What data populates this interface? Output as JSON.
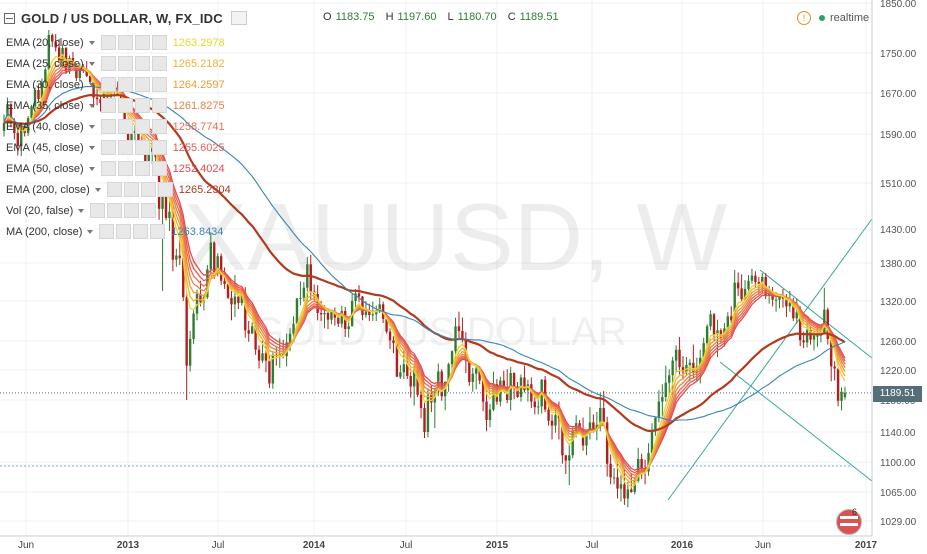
{
  "header": {
    "title": "GOLD / US DOLLAR, W, FX_IDC",
    "ohlc": {
      "o_label": "O",
      "o": "1183.75",
      "h_label": "H",
      "h": "1197.60",
      "l_label": "L",
      "l": "1180.70",
      "c_label": "C",
      "c": "1189.51"
    },
    "realtime_label": "realtime"
  },
  "watermark": {
    "symbol": "XAUUSD, W",
    "name": "GOLD / US DOLLAR"
  },
  "indicators": [
    {
      "name": "EMA (20, close)",
      "value": "1263.2978",
      "color": "#e6d632"
    },
    {
      "name": "EMA (25, close)",
      "value": "1265.2182",
      "color": "#f2b233"
    },
    {
      "name": "EMA (30, close)",
      "value": "1264.2597",
      "color": "#ef9c39"
    },
    {
      "name": "EMA (35, close)",
      "value": "1261.8275",
      "color": "#ec7f45"
    },
    {
      "name": "EMA (40, close)",
      "value": "1258.7741",
      "color": "#ea6c50"
    },
    {
      "name": "EMA (45, close)",
      "value": "1255.6025",
      "color": "#e75b55"
    },
    {
      "name": "EMA (50, close)",
      "value": "1252.4024",
      "color": "#e54c50"
    },
    {
      "name": "EMA (200, close)",
      "value": "1265.2304",
      "color": "#b23a1d"
    },
    {
      "name": "Vol (20, false)",
      "value": "",
      "color": "#888888"
    },
    {
      "name": "MA (200, close)",
      "value": "1263.8434",
      "color": "#3b84b4"
    }
  ],
  "last_price_tag": "1189.51",
  "event_badge_count": "6",
  "chart_data": {
    "type": "candlestick",
    "interval": "W",
    "y_ticks": [
      "1029.00",
      "1065.00",
      "1100.00",
      "1140.00",
      "1180.00",
      "1220.00",
      "1260.00",
      "1320.00",
      "1380.00",
      "1430.00",
      "1510.00",
      "1590.00",
      "1670.00",
      "1750.00",
      "1850.00"
    ],
    "x_ticks": [
      "Jun",
      "2013",
      "Jul",
      "2014",
      "Jul",
      "2015",
      "Jul",
      "2016",
      "Jun",
      "2017"
    ],
    "candles": [
      [
        1596,
        1628,
        1586,
        1612
      ],
      [
        1612,
        1661,
        1598,
        1648
      ],
      [
        1648,
        1650,
        1603,
        1615
      ],
      [
        1615,
        1621,
        1581,
        1592
      ],
      [
        1592,
        1604,
        1555,
        1570
      ],
      [
        1570,
        1610,
        1554,
        1600
      ],
      [
        1600,
        1607,
        1586,
        1592
      ],
      [
        1592,
        1625,
        1587,
        1621
      ],
      [
        1621,
        1647,
        1617,
        1644
      ],
      [
        1644,
        1681,
        1630,
        1676
      ],
      [
        1676,
        1687,
        1651,
        1658
      ],
      [
        1658,
        1699,
        1658,
        1691
      ],
      [
        1691,
        1721,
        1677,
        1717
      ],
      [
        1717,
        1796,
        1716,
        1786
      ],
      [
        1786,
        1789,
        1762,
        1773
      ],
      [
        1773,
        1788,
        1753,
        1761
      ],
      [
        1761,
        1778,
        1730,
        1735
      ],
      [
        1735,
        1767,
        1721,
        1760
      ],
      [
        1760,
        1762,
        1708,
        1713
      ],
      [
        1713,
        1745,
        1708,
        1740
      ],
      [
        1740,
        1752,
        1723,
        1726
      ],
      [
        1726,
        1729,
        1694,
        1700
      ],
      [
        1700,
        1729,
        1693,
        1723
      ],
      [
        1723,
        1728,
        1710,
        1715
      ],
      [
        1715,
        1734,
        1702,
        1704
      ],
      [
        1704,
        1710,
        1689,
        1692
      ],
      [
        1692,
        1696,
        1642,
        1661
      ],
      [
        1661,
        1681,
        1646,
        1658
      ],
      [
        1658,
        1667,
        1634,
        1650
      ],
      [
        1650,
        1676,
        1638,
        1669
      ],
      [
        1669,
        1671,
        1648,
        1662
      ],
      [
        1662,
        1676,
        1653,
        1672
      ],
      [
        1672,
        1688,
        1662,
        1680
      ],
      [
        1680,
        1693,
        1666,
        1667
      ],
      [
        1667,
        1673,
        1641,
        1655
      ],
      [
        1655,
        1663,
        1610,
        1614
      ],
      [
        1614,
        1620,
        1556,
        1575
      ],
      [
        1575,
        1611,
        1557,
        1592
      ],
      [
        1592,
        1608,
        1580,
        1596
      ],
      [
        1596,
        1605,
        1567,
        1578
      ],
      [
        1578,
        1589,
        1562,
        1570
      ],
      [
        1570,
        1578,
        1543,
        1546
      ],
      [
        1546,
        1571,
        1526,
        1561
      ],
      [
        1561,
        1578,
        1541,
        1567
      ],
      [
        1567,
        1575,
        1545,
        1552
      ],
      [
        1552,
        1559,
        1446,
        1465
      ],
      [
        1465,
        1504,
        1336,
        1492
      ],
      [
        1492,
        1501,
        1445,
        1449
      ],
      [
        1449,
        1478,
        1427,
        1460
      ],
      [
        1460,
        1468,
        1367,
        1385
      ],
      [
        1385,
        1401,
        1374,
        1391
      ],
      [
        1391,
        1420,
        1377,
        1387
      ],
      [
        1387,
        1403,
        1320,
        1326
      ],
      [
        1326,
        1333,
        1180,
        1226
      ],
      [
        1226,
        1275,
        1218,
        1263
      ],
      [
        1263,
        1306,
        1256,
        1301
      ],
      [
        1301,
        1338,
        1291,
        1331
      ],
      [
        1331,
        1352,
        1312,
        1318
      ],
      [
        1318,
        1330,
        1306,
        1326
      ],
      [
        1326,
        1377,
        1323,
        1370
      ],
      [
        1370,
        1425,
        1353,
        1410
      ],
      [
        1410,
        1412,
        1355,
        1366
      ],
      [
        1366,
        1394,
        1359,
        1390
      ],
      [
        1390,
        1394,
        1345,
        1352
      ],
      [
        1352,
        1373,
        1339,
        1347
      ],
      [
        1347,
        1353,
        1323,
        1325
      ],
      [
        1325,
        1339,
        1291,
        1315
      ],
      [
        1315,
        1361,
        1296,
        1327
      ],
      [
        1327,
        1328,
        1308,
        1317
      ],
      [
        1317,
        1341,
        1313,
        1333
      ],
      [
        1333,
        1342,
        1265,
        1276
      ],
      [
        1276,
        1290,
        1259,
        1271
      ],
      [
        1271,
        1288,
        1271,
        1282
      ],
      [
        1282,
        1289,
        1241,
        1248
      ],
      [
        1248,
        1254,
        1222,
        1233
      ],
      [
        1233,
        1260,
        1230,
        1243
      ],
      [
        1243,
        1260,
        1217,
        1233
      ],
      [
        1233,
        1240,
        1196,
        1202
      ],
      [
        1202,
        1244,
        1195,
        1241
      ],
      [
        1241,
        1251,
        1226,
        1239
      ],
      [
        1239,
        1264,
        1223,
        1242
      ],
      [
        1242,
        1262,
        1236,
        1239
      ],
      [
        1239,
        1271,
        1225,
        1258
      ],
      [
        1258,
        1279,
        1246,
        1271
      ],
      [
        1271,
        1297,
        1266,
        1286
      ],
      [
        1286,
        1325,
        1286,
        1324
      ],
      [
        1324,
        1351,
        1314,
        1325
      ],
      [
        1325,
        1350,
        1319,
        1341
      ],
      [
        1341,
        1389,
        1320,
        1378
      ],
      [
        1378,
        1392,
        1323,
        1335
      ],
      [
        1335,
        1346,
        1321,
        1331
      ],
      [
        1331,
        1345,
        1291,
        1302
      ],
      [
        1302,
        1320,
        1290,
        1300
      ],
      [
        1300,
        1314,
        1279,
        1302
      ],
      [
        1302,
        1309,
        1278,
        1292
      ],
      [
        1292,
        1307,
        1285,
        1304
      ],
      [
        1304,
        1310,
        1283,
        1295
      ],
      [
        1295,
        1302,
        1281,
        1286
      ],
      [
        1286,
        1313,
        1280,
        1305
      ],
      [
        1305,
        1311,
        1266,
        1278
      ],
      [
        1278,
        1291,
        1265,
        1282
      ],
      [
        1282,
        1331,
        1282,
        1320
      ],
      [
        1320,
        1339,
        1307,
        1332
      ],
      [
        1332,
        1345,
        1318,
        1327
      ],
      [
        1327,
        1328,
        1291,
        1299
      ],
      [
        1299,
        1320,
        1295,
        1304
      ],
      [
        1304,
        1316,
        1290,
        1299
      ],
      [
        1299,
        1319,
        1290,
        1300
      ],
      [
        1300,
        1313,
        1290,
        1305
      ],
      [
        1305,
        1325,
        1302,
        1315
      ],
      [
        1315,
        1319,
        1287,
        1293
      ],
      [
        1293,
        1301,
        1271,
        1274
      ],
      [
        1274,
        1279,
        1249,
        1261
      ],
      [
        1261,
        1267,
        1243,
        1257
      ],
      [
        1257,
        1264,
        1211,
        1211
      ],
      [
        1211,
        1227,
        1208,
        1217
      ],
      [
        1217,
        1248,
        1208,
        1228
      ],
      [
        1228,
        1245,
        1208,
        1212
      ],
      [
        1212,
        1222,
        1183,
        1198
      ],
      [
        1198,
        1226,
        1173,
        1220
      ],
      [
        1220,
        1224,
        1184,
        1187
      ],
      [
        1187,
        1195,
        1157,
        1170
      ],
      [
        1170,
        1178,
        1132,
        1140
      ],
      [
        1140,
        1194,
        1133,
        1187
      ],
      [
        1187,
        1200,
        1165,
        1177
      ],
      [
        1177,
        1196,
        1145,
        1191
      ],
      [
        1191,
        1229,
        1185,
        1218
      ],
      [
        1218,
        1221,
        1179,
        1185
      ],
      [
        1185,
        1205,
        1167,
        1204
      ],
      [
        1204,
        1230,
        1191,
        1228
      ],
      [
        1228,
        1247,
        1214,
        1246
      ],
      [
        1246,
        1295,
        1235,
        1282
      ],
      [
        1282,
        1304,
        1262,
        1275
      ],
      [
        1275,
        1295,
        1258,
        1263
      ],
      [
        1263,
        1273,
        1216,
        1233
      ],
      [
        1233,
        1234,
        1199,
        1204
      ],
      [
        1204,
        1223,
        1191,
        1215
      ],
      [
        1215,
        1227,
        1194,
        1222
      ],
      [
        1222,
        1225,
        1201,
        1206
      ],
      [
        1206,
        1208,
        1166,
        1178
      ],
      [
        1178,
        1194,
        1141,
        1155
      ],
      [
        1155,
        1175,
        1146,
        1168
      ],
      [
        1168,
        1218,
        1166,
        1201
      ],
      [
        1201,
        1208,
        1174,
        1178
      ],
      [
        1178,
        1211,
        1172,
        1206
      ],
      [
        1206,
        1219,
        1191,
        1194
      ],
      [
        1194,
        1221,
        1176,
        1180
      ],
      [
        1180,
        1224,
        1167,
        1216
      ],
      [
        1216,
        1217,
        1181,
        1196
      ],
      [
        1196,
        1204,
        1183,
        1184
      ],
      [
        1184,
        1214,
        1178,
        1210
      ],
      [
        1210,
        1226,
        1190,
        1193
      ],
      [
        1193,
        1207,
        1178,
        1201
      ],
      [
        1201,
        1210,
        1170,
        1178
      ],
      [
        1178,
        1190,
        1162,
        1171
      ],
      [
        1171,
        1190,
        1162,
        1172
      ],
      [
        1172,
        1208,
        1163,
        1207
      ],
      [
        1207,
        1212,
        1165,
        1168
      ],
      [
        1168,
        1179,
        1148,
        1154
      ],
      [
        1154,
        1162,
        1130,
        1148
      ],
      [
        1148,
        1176,
        1139,
        1161
      ],
      [
        1161,
        1178,
        1130,
        1157
      ],
      [
        1157,
        1159,
        1098,
        1109
      ],
      [
        1109,
        1109,
        1086,
        1102
      ],
      [
        1102,
        1125,
        1073,
        1109
      ],
      [
        1109,
        1146,
        1105,
        1141
      ],
      [
        1141,
        1161,
        1133,
        1151
      ],
      [
        1151,
        1155,
        1138,
        1143
      ],
      [
        1143,
        1158,
        1115,
        1122
      ],
      [
        1122,
        1140,
        1109,
        1139
      ],
      [
        1139,
        1171,
        1130,
        1152
      ],
      [
        1152,
        1162,
        1139,
        1142
      ],
      [
        1142,
        1165,
        1129,
        1149
      ],
      [
        1149,
        1190,
        1141,
        1170
      ],
      [
        1170,
        1192,
        1148,
        1152
      ],
      [
        1152,
        1159,
        1083,
        1098
      ],
      [
        1098,
        1110,
        1074,
        1082
      ],
      [
        1082,
        1093,
        1074,
        1082
      ],
      [
        1082,
        1101,
        1057,
        1069
      ],
      [
        1069,
        1085,
        1053,
        1074
      ],
      [
        1074,
        1091,
        1049,
        1057
      ],
      [
        1057,
        1077,
        1046,
        1068
      ],
      [
        1068,
        1087,
        1064,
        1065
      ],
      [
        1065,
        1081,
        1062,
        1078
      ],
      [
        1078,
        1119,
        1076,
        1104
      ],
      [
        1104,
        1111,
        1080,
        1093
      ],
      [
        1093,
        1103,
        1074,
        1089
      ],
      [
        1089,
        1125,
        1084,
        1112
      ],
      [
        1112,
        1151,
        1109,
        1141
      ],
      [
        1141,
        1158,
        1135,
        1158
      ],
      [
        1158,
        1193,
        1152,
        1178
      ],
      [
        1178,
        1201,
        1159,
        1184
      ],
      [
        1184,
        1226,
        1178,
        1203
      ],
      [
        1203,
        1221,
        1186,
        1213
      ],
      [
        1213,
        1238,
        1185,
        1233
      ],
      [
        1233,
        1254,
        1216,
        1248
      ],
      [
        1248,
        1266,
        1214,
        1224
      ],
      [
        1224,
        1239,
        1207,
        1217
      ],
      [
        1217,
        1238,
        1214,
        1227
      ],
      [
        1227,
        1235,
        1205,
        1230
      ],
      [
        1230,
        1255,
        1210,
        1216
      ],
      [
        1216,
        1237,
        1206,
        1225
      ],
      [
        1225,
        1248,
        1202,
        1237
      ],
      [
        1237,
        1265,
        1226,
        1257
      ],
      [
        1257,
        1285,
        1235,
        1282
      ],
      [
        1282,
        1306,
        1276,
        1300
      ],
      [
        1300,
        1302,
        1261,
        1270
      ],
      [
        1270,
        1292,
        1238,
        1276
      ],
      [
        1276,
        1279,
        1257,
        1264
      ],
      [
        1264,
        1287,
        1252,
        1279
      ],
      [
        1279,
        1303,
        1271,
        1297
      ],
      [
        1297,
        1312,
        1279,
        1291
      ],
      [
        1291,
        1369,
        1277,
        1349
      ],
      [
        1349,
        1365,
        1328,
        1340
      ],
      [
        1340,
        1362,
        1319,
        1323
      ],
      [
        1323,
        1353,
        1321,
        1339
      ],
      [
        1339,
        1361,
        1333,
        1352
      ],
      [
        1352,
        1371,
        1347,
        1360
      ],
      [
        1360,
        1367,
        1342,
        1350
      ],
      [
        1350,
        1358,
        1330,
        1347
      ],
      [
        1347,
        1364,
        1332,
        1358
      ],
      [
        1358,
        1364,
        1323,
        1328
      ],
      [
        1328,
        1344,
        1316,
        1332
      ],
      [
        1332,
        1342,
        1312,
        1322
      ],
      [
        1322,
        1334,
        1304,
        1322
      ],
      [
        1322,
        1329,
        1309,
        1327
      ],
      [
        1327,
        1339,
        1310,
        1324
      ],
      [
        1324,
        1331,
        1296,
        1312
      ],
      [
        1312,
        1336,
        1304,
        1317
      ],
      [
        1317,
        1325,
        1290,
        1294
      ],
      [
        1294,
        1324,
        1286,
        1303
      ],
      [
        1303,
        1312,
        1253,
        1261
      ],
      [
        1261,
        1274,
        1250,
        1258
      ],
      [
        1258,
        1289,
        1251,
        1276
      ],
      [
        1276,
        1281,
        1255,
        1262
      ],
      [
        1262,
        1274,
        1247,
        1268
      ],
      [
        1268,
        1282,
        1252,
        1268
      ],
      [
        1268,
        1282,
        1258,
        1273
      ],
      [
        1273,
        1341,
        1273,
        1307
      ],
      [
        1307,
        1310,
        1255,
        1263
      ],
      [
        1263,
        1267,
        1205,
        1225
      ],
      [
        1225,
        1232,
        1206,
        1222
      ],
      [
        1222,
        1222,
        1172,
        1179
      ],
      [
        1179,
        1197,
        1167,
        1191
      ],
      [
        1183.75,
        1197.6,
        1180.7,
        1189.51
      ]
    ]
  }
}
